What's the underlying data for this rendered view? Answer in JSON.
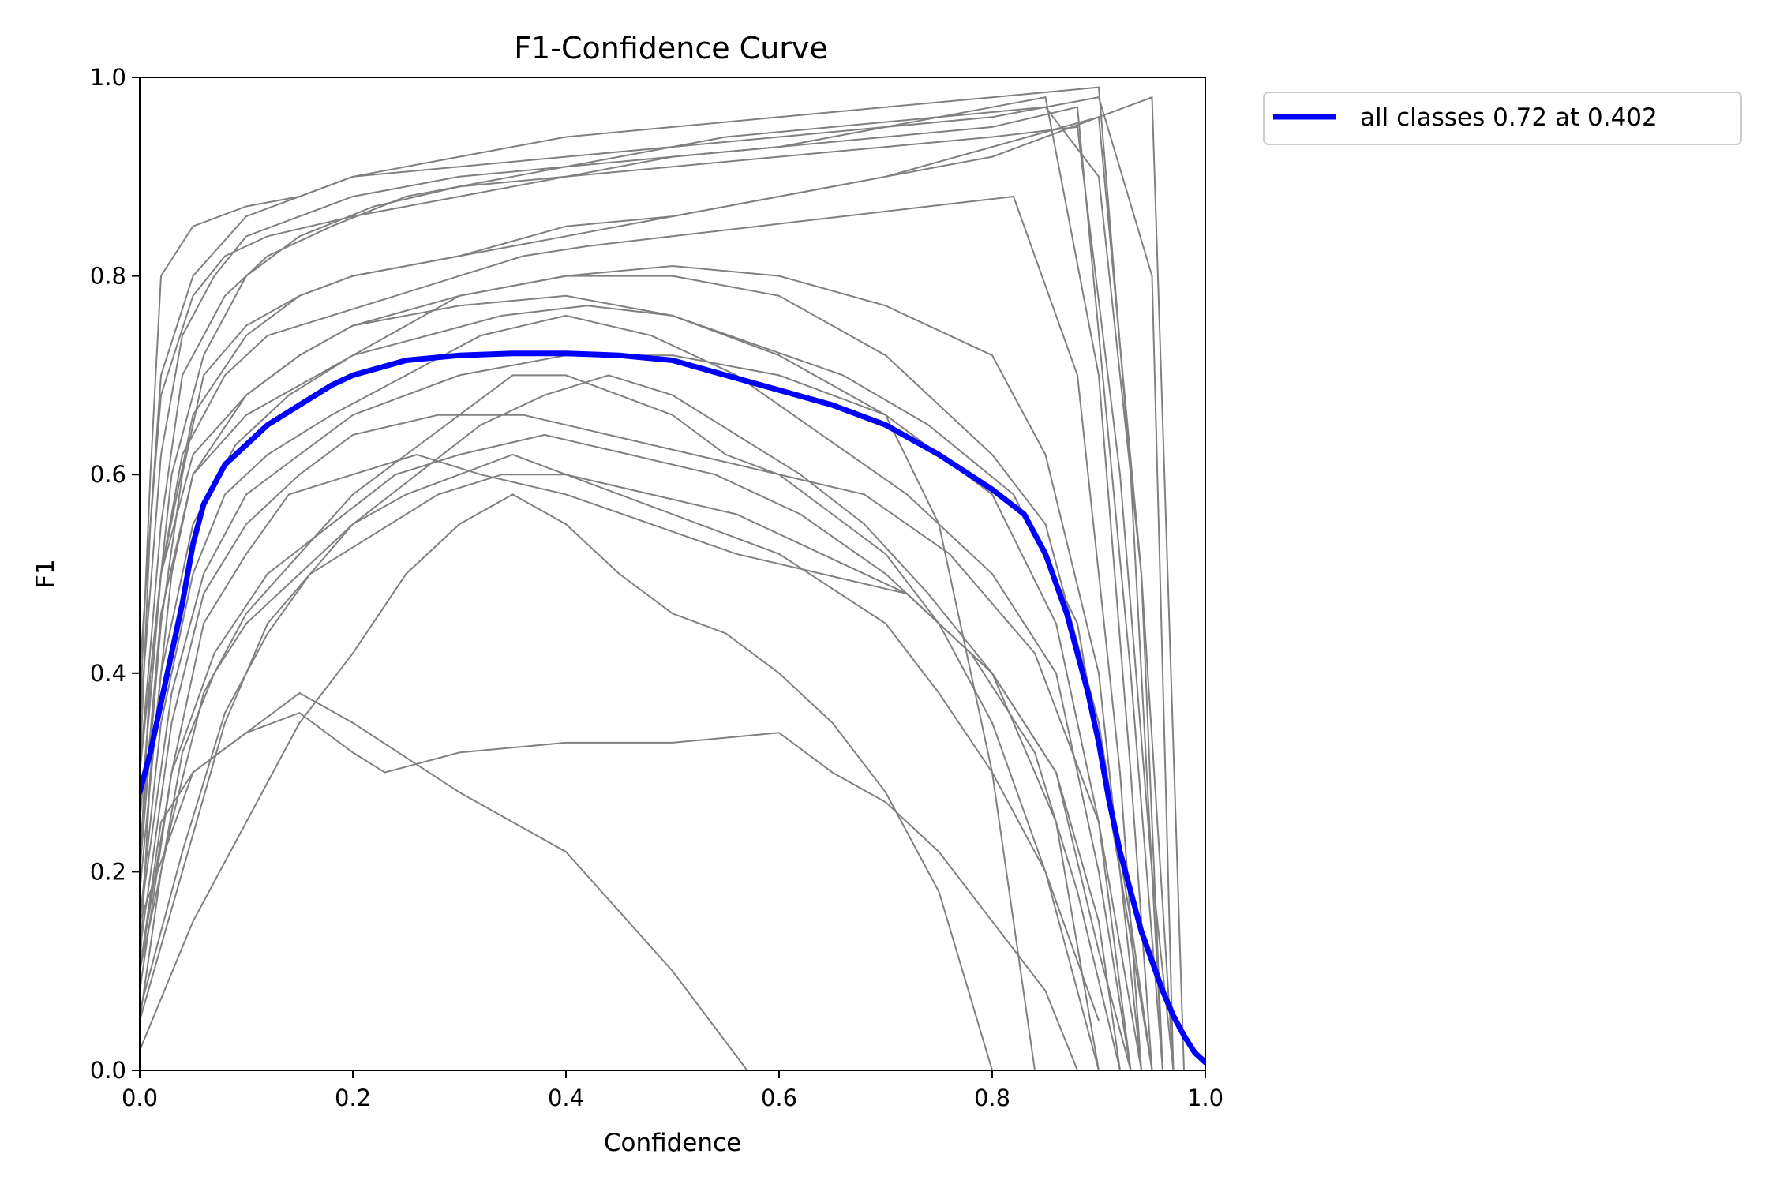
{
  "chart_data": {
    "type": "line",
    "title": "F1-Confidence Curve",
    "xlabel": "Confidence",
    "ylabel": "F1",
    "xlim": [
      0.0,
      1.0
    ],
    "ylim": [
      0.0,
      1.0
    ],
    "xticks": [
      "0.0",
      "0.2",
      "0.4",
      "0.6",
      "0.8",
      "1.0"
    ],
    "yticks": [
      "0.0",
      "0.2",
      "0.4",
      "0.6",
      "0.8",
      "1.0"
    ],
    "grid": false,
    "legend_position": "outside-top-right",
    "colors": {
      "class_curves": "#808080",
      "all_classes": "#0000ff"
    },
    "series": [
      {
        "name": "all classes 0.72 at 0.402",
        "x": [
          0.0,
          0.01,
          0.02,
          0.03,
          0.04,
          0.05,
          0.06,
          0.07,
          0.08,
          0.1,
          0.12,
          0.15,
          0.18,
          0.2,
          0.25,
          0.3,
          0.35,
          0.4,
          0.45,
          0.5,
          0.55,
          0.6,
          0.65,
          0.7,
          0.75,
          0.8,
          0.83,
          0.85,
          0.87,
          0.89,
          0.9,
          0.91,
          0.92,
          0.93,
          0.94,
          0.95,
          0.96,
          0.97,
          0.98,
          0.99,
          1.0
        ],
        "y": [
          0.28,
          0.32,
          0.37,
          0.42,
          0.47,
          0.53,
          0.57,
          0.59,
          0.61,
          0.63,
          0.65,
          0.67,
          0.69,
          0.7,
          0.715,
          0.72,
          0.722,
          0.722,
          0.72,
          0.715,
          0.7,
          0.685,
          0.67,
          0.65,
          0.62,
          0.585,
          0.56,
          0.52,
          0.46,
          0.38,
          0.33,
          0.27,
          0.22,
          0.18,
          0.14,
          0.11,
          0.08,
          0.055,
          0.035,
          0.018,
          0.008
        ]
      }
    ],
    "class_curves": [
      {
        "x": [
          0.0,
          0.01,
          0.02,
          0.05,
          0.08,
          0.12,
          0.2,
          0.3,
          0.4,
          0.5,
          0.6,
          0.7,
          0.8,
          0.88,
          0.92,
          0.95,
          0.97
        ],
        "y": [
          0.3,
          0.55,
          0.68,
          0.78,
          0.82,
          0.84,
          0.86,
          0.88,
          0.9,
          0.91,
          0.92,
          0.93,
          0.94,
          0.95,
          0.6,
          0.2,
          0.0
        ]
      },
      {
        "x": [
          0.0,
          0.02,
          0.04,
          0.06,
          0.1,
          0.15,
          0.2,
          0.3,
          0.4,
          0.5,
          0.6,
          0.7,
          0.8,
          0.9,
          0.94,
          0.96
        ],
        "y": [
          0.2,
          0.45,
          0.6,
          0.7,
          0.75,
          0.78,
          0.8,
          0.82,
          0.85,
          0.86,
          0.88,
          0.9,
          0.92,
          0.96,
          0.5,
          0.0
        ]
      },
      {
        "x": [
          0.0,
          0.01,
          0.03,
          0.05,
          0.1,
          0.2,
          0.3,
          0.4,
          0.5,
          0.6,
          0.7,
          0.8,
          0.85,
          0.9,
          0.93,
          0.95
        ],
        "y": [
          0.1,
          0.3,
          0.5,
          0.6,
          0.66,
          0.72,
          0.78,
          0.8,
          0.8,
          0.78,
          0.72,
          0.62,
          0.55,
          0.35,
          0.15,
          0.0
        ]
      },
      {
        "x": [
          0.0,
          0.02,
          0.05,
          0.08,
          0.12,
          0.18,
          0.25,
          0.32,
          0.4,
          0.48,
          0.56,
          0.64,
          0.72,
          0.8,
          0.86,
          0.9,
          0.93
        ],
        "y": [
          0.15,
          0.35,
          0.5,
          0.58,
          0.62,
          0.66,
          0.7,
          0.74,
          0.76,
          0.74,
          0.7,
          0.64,
          0.58,
          0.5,
          0.4,
          0.2,
          0.0
        ]
      },
      {
        "x": [
          0.0,
          0.01,
          0.02,
          0.05,
          0.1,
          0.15,
          0.2,
          0.3,
          0.4,
          0.5,
          0.6,
          0.7,
          0.8,
          0.85,
          0.9,
          0.93,
          0.95
        ],
        "y": [
          0.35,
          0.6,
          0.8,
          0.85,
          0.87,
          0.88,
          0.9,
          0.91,
          0.92,
          0.93,
          0.94,
          0.95,
          0.97,
          0.98,
          0.7,
          0.3,
          0.0
        ]
      },
      {
        "x": [
          0.0,
          0.02,
          0.04,
          0.07,
          0.1,
          0.15,
          0.2,
          0.25,
          0.3,
          0.35,
          0.4,
          0.5,
          0.6,
          0.7,
          0.75,
          0.8,
          0.85,
          0.9
        ],
        "y": [
          0.05,
          0.2,
          0.32,
          0.4,
          0.45,
          0.5,
          0.55,
          0.58,
          0.6,
          0.62,
          0.6,
          0.56,
          0.52,
          0.45,
          0.38,
          0.3,
          0.2,
          0.0
        ]
      },
      {
        "x": [
          0.0,
          0.03,
          0.06,
          0.1,
          0.15,
          0.2,
          0.25,
          0.3,
          0.35,
          0.4,
          0.45,
          0.5,
          0.55,
          0.6,
          0.65,
          0.7,
          0.75,
          0.8,
          0.85,
          0.9
        ],
        "y": [
          0.1,
          0.25,
          0.38,
          0.46,
          0.52,
          0.58,
          0.62,
          0.66,
          0.7,
          0.7,
          0.68,
          0.66,
          0.62,
          0.6,
          0.56,
          0.52,
          0.45,
          0.35,
          0.2,
          0.05
        ]
      },
      {
        "x": [
          0.0,
          0.05,
          0.1,
          0.15,
          0.2,
          0.23,
          0.3,
          0.4,
          0.5,
          0.6,
          0.65,
          0.7,
          0.75,
          0.8,
          0.85,
          0.88
        ],
        "y": [
          0.15,
          0.3,
          0.34,
          0.36,
          0.32,
          0.3,
          0.32,
          0.33,
          0.33,
          0.34,
          0.3,
          0.27,
          0.22,
          0.15,
          0.08,
          0.0
        ]
      },
      {
        "x": [
          0.0,
          0.02,
          0.05,
          0.1,
          0.15,
          0.2,
          0.3,
          0.4,
          0.5,
          0.57
        ],
        "y": [
          0.1,
          0.25,
          0.3,
          0.34,
          0.38,
          0.35,
          0.28,
          0.22,
          0.1,
          0.0
        ]
      },
      {
        "x": [
          0.0,
          0.02,
          0.05,
          0.1,
          0.15,
          0.2,
          0.3,
          0.4,
          0.5,
          0.6,
          0.7,
          0.75,
          0.8,
          0.84
        ],
        "y": [
          0.3,
          0.5,
          0.62,
          0.68,
          0.72,
          0.75,
          0.77,
          0.78,
          0.76,
          0.72,
          0.66,
          0.55,
          0.3,
          0.0
        ]
      },
      {
        "x": [
          0.0,
          0.02,
          0.04,
          0.08,
          0.12,
          0.18,
          0.24,
          0.3,
          0.36,
          0.42,
          0.5,
          0.58,
          0.66,
          0.74,
          0.82,
          0.88,
          0.92,
          0.94
        ],
        "y": [
          0.25,
          0.5,
          0.62,
          0.7,
          0.74,
          0.76,
          0.78,
          0.8,
          0.82,
          0.83,
          0.84,
          0.85,
          0.86,
          0.87,
          0.88,
          0.7,
          0.3,
          0.0
        ]
      },
      {
        "x": [
          0.0,
          0.03,
          0.06,
          0.1,
          0.14,
          0.2,
          0.26,
          0.32,
          0.4,
          0.48,
          0.56,
          0.64,
          0.72,
          0.8,
          0.86,
          0.9
        ],
        "y": [
          0.08,
          0.3,
          0.45,
          0.52,
          0.58,
          0.6,
          0.62,
          0.6,
          0.58,
          0.55,
          0.52,
          0.5,
          0.48,
          0.4,
          0.25,
          0.0
        ]
      },
      {
        "x": [
          0.0,
          0.01,
          0.03,
          0.06,
          0.1,
          0.15,
          0.22,
          0.3,
          0.4,
          0.5,
          0.6,
          0.7,
          0.8,
          0.9,
          0.95,
          0.97
        ],
        "y": [
          0.2,
          0.4,
          0.6,
          0.72,
          0.8,
          0.84,
          0.87,
          0.89,
          0.9,
          0.92,
          0.93,
          0.95,
          0.96,
          0.98,
          0.8,
          0.0
        ]
      },
      {
        "x": [
          0.0,
          0.04,
          0.08,
          0.12,
          0.16,
          0.2,
          0.26,
          0.32,
          0.38,
          0.44,
          0.5,
          0.56,
          0.62,
          0.68,
          0.74,
          0.8,
          0.86,
          0.9,
          0.92
        ],
        "y": [
          0.05,
          0.2,
          0.35,
          0.45,
          0.5,
          0.55,
          0.6,
          0.65,
          0.68,
          0.7,
          0.68,
          0.64,
          0.6,
          0.55,
          0.48,
          0.4,
          0.3,
          0.15,
          0.0
        ]
      },
      {
        "x": [
          0.0,
          0.02,
          0.05,
          0.1,
          0.2,
          0.3,
          0.4,
          0.5,
          0.6,
          0.7,
          0.8,
          0.9,
          0.93,
          0.96
        ],
        "y": [
          0.4,
          0.7,
          0.8,
          0.86,
          0.9,
          0.92,
          0.94,
          0.95,
          0.96,
          0.97,
          0.98,
          0.99,
          0.6,
          0.0
        ]
      },
      {
        "x": [
          0.0,
          0.03,
          0.06,
          0.1,
          0.15,
          0.2,
          0.28,
          0.36,
          0.44,
          0.52,
          0.6,
          0.68,
          0.76,
          0.84,
          0.9,
          0.94
        ],
        "y": [
          0.12,
          0.35,
          0.48,
          0.55,
          0.6,
          0.64,
          0.66,
          0.66,
          0.64,
          0.62,
          0.6,
          0.58,
          0.52,
          0.42,
          0.25,
          0.0
        ]
      },
      {
        "x": [
          0.0,
          0.02,
          0.05,
          0.09,
          0.14,
          0.2,
          0.27,
          0.34,
          0.42,
          0.5,
          0.58,
          0.66,
          0.74,
          0.82,
          0.88,
          0.92,
          0.95
        ],
        "y": [
          0.18,
          0.4,
          0.55,
          0.63,
          0.68,
          0.72,
          0.74,
          0.76,
          0.77,
          0.76,
          0.73,
          0.7,
          0.65,
          0.58,
          0.45,
          0.2,
          0.0
        ]
      },
      {
        "x": [
          0.0,
          0.05,
          0.1,
          0.15,
          0.2,
          0.25,
          0.3,
          0.35,
          0.4,
          0.45,
          0.5,
          0.55,
          0.6,
          0.65,
          0.7,
          0.75,
          0.8
        ],
        "y": [
          0.02,
          0.15,
          0.25,
          0.35,
          0.42,
          0.5,
          0.55,
          0.58,
          0.55,
          0.5,
          0.46,
          0.44,
          0.4,
          0.35,
          0.28,
          0.18,
          0.0
        ]
      },
      {
        "x": [
          0.0,
          0.02,
          0.04,
          0.08,
          0.12,
          0.18,
          0.25,
          0.35,
          0.45,
          0.55,
          0.65,
          0.75,
          0.85,
          0.9,
          0.94,
          0.97
        ],
        "y": [
          0.3,
          0.55,
          0.7,
          0.78,
          0.82,
          0.85,
          0.88,
          0.9,
          0.92,
          0.94,
          0.95,
          0.96,
          0.97,
          0.9,
          0.5,
          0.0
        ]
      },
      {
        "x": [
          0.0,
          0.03,
          0.06,
          0.1,
          0.15,
          0.2,
          0.3,
          0.4,
          0.5,
          0.6,
          0.7,
          0.8,
          0.86,
          0.9,
          0.93
        ],
        "y": [
          0.15,
          0.38,
          0.5,
          0.58,
          0.62,
          0.66,
          0.7,
          0.72,
          0.72,
          0.7,
          0.66,
          0.58,
          0.45,
          0.25,
          0.0
        ]
      },
      {
        "x": [
          0.0,
          0.02,
          0.05,
          0.1,
          0.15,
          0.2,
          0.3,
          0.4,
          0.5,
          0.6,
          0.7,
          0.8,
          0.9,
          0.95,
          0.98
        ],
        "y": [
          0.25,
          0.5,
          0.66,
          0.74,
          0.78,
          0.8,
          0.82,
          0.84,
          0.86,
          0.88,
          0.9,
          0.93,
          0.96,
          0.98,
          0.0
        ]
      },
      {
        "x": [
          0.0,
          0.03,
          0.07,
          0.12,
          0.18,
          0.24,
          0.3,
          0.38,
          0.46,
          0.54,
          0.62,
          0.7,
          0.78,
          0.84,
          0.88,
          0.92
        ],
        "y": [
          0.1,
          0.3,
          0.42,
          0.5,
          0.55,
          0.6,
          0.62,
          0.64,
          0.62,
          0.6,
          0.56,
          0.5,
          0.42,
          0.32,
          0.18,
          0.0
        ]
      },
      {
        "x": [
          0.0,
          0.02,
          0.04,
          0.07,
          0.1,
          0.15,
          0.2,
          0.3,
          0.4,
          0.5,
          0.6,
          0.7,
          0.8,
          0.88,
          0.93,
          0.96
        ],
        "y": [
          0.35,
          0.62,
          0.74,
          0.8,
          0.84,
          0.86,
          0.88,
          0.9,
          0.91,
          0.92,
          0.93,
          0.94,
          0.95,
          0.97,
          0.4,
          0.0
        ]
      },
      {
        "x": [
          0.0,
          0.04,
          0.08,
          0.12,
          0.16,
          0.22,
          0.28,
          0.34,
          0.4,
          0.48,
          0.56,
          0.64,
          0.72,
          0.8,
          0.86,
          0.9,
          0.93
        ],
        "y": [
          0.06,
          0.22,
          0.36,
          0.44,
          0.5,
          0.54,
          0.58,
          0.6,
          0.6,
          0.58,
          0.56,
          0.52,
          0.48,
          0.4,
          0.3,
          0.12,
          0.0
        ]
      },
      {
        "x": [
          0.0,
          0.02,
          0.05,
          0.1,
          0.15,
          0.2,
          0.3,
          0.4,
          0.5,
          0.6,
          0.7,
          0.8,
          0.85,
          0.9,
          0.94
        ],
        "y": [
          0.22,
          0.46,
          0.6,
          0.68,
          0.72,
          0.75,
          0.78,
          0.8,
          0.81,
          0.8,
          0.77,
          0.72,
          0.62,
          0.4,
          0.0
        ]
      }
    ]
  }
}
